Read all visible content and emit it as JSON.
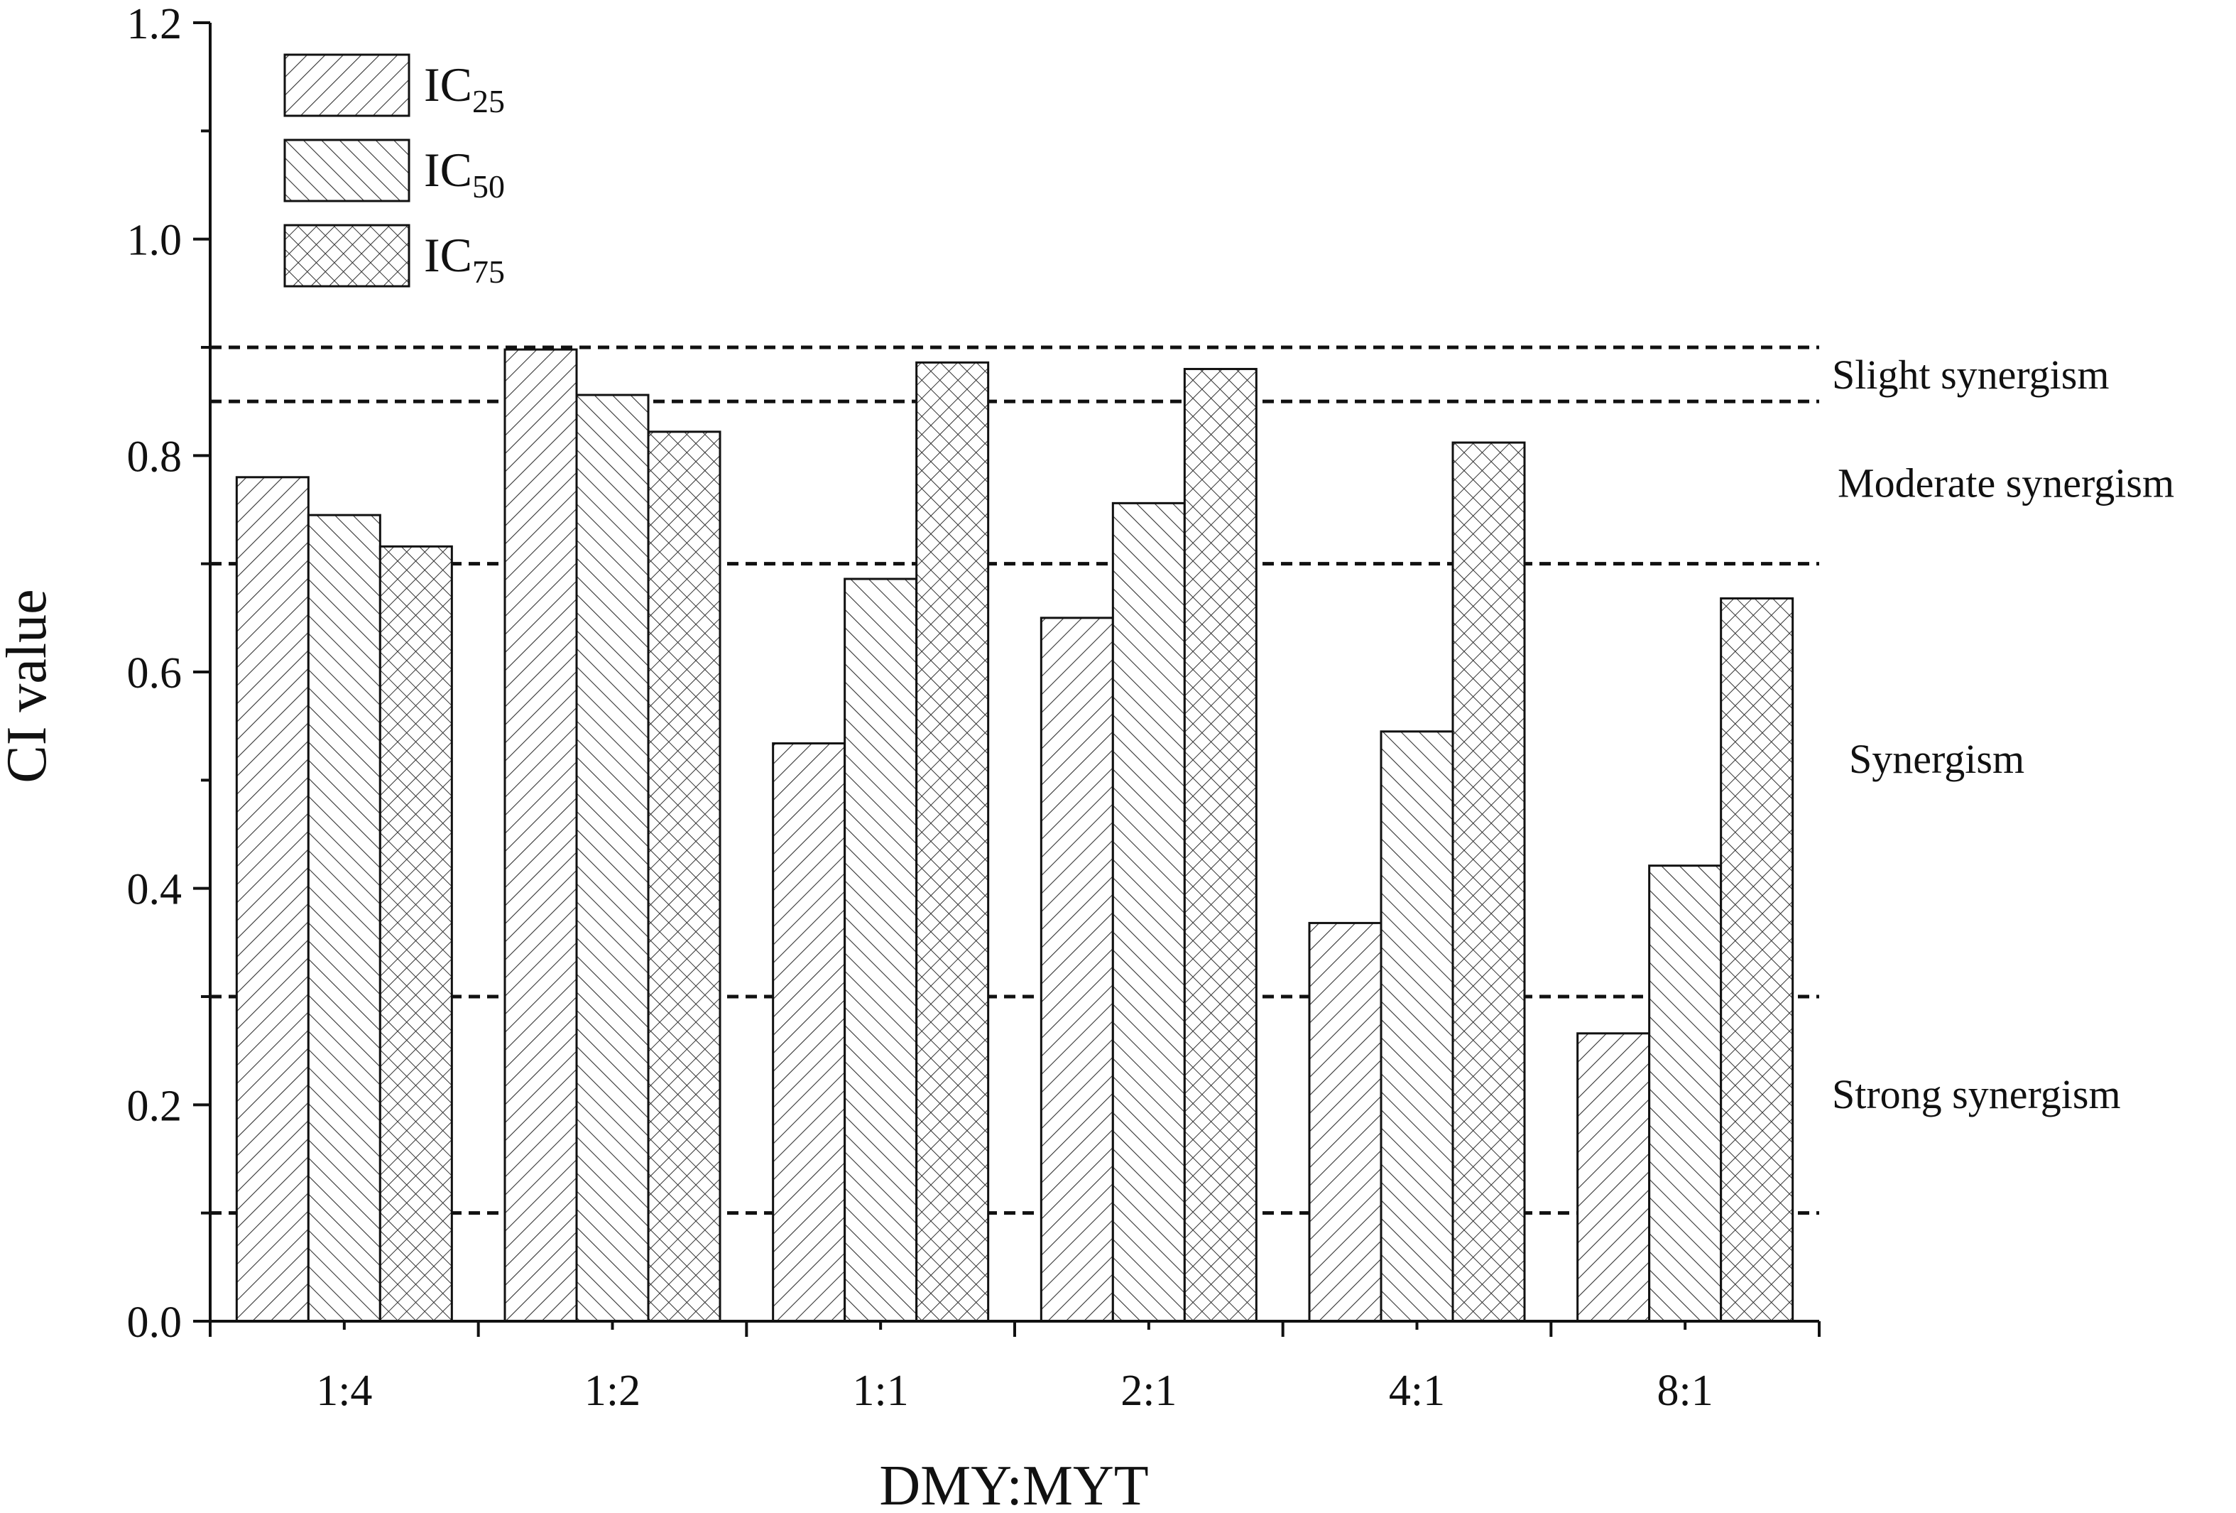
{
  "chart_data": {
    "type": "bar",
    "title": "",
    "xlabel": "DMY:MYT",
    "ylabel": "CI value",
    "categories": [
      "1:4",
      "1:2",
      "1:1",
      "2:1",
      "4:1",
      "8:1"
    ],
    "series": [
      {
        "name": "IC25",
        "label_main": "IC",
        "label_sub": "25",
        "pattern": "diag-forward",
        "values": [
          0.78,
          0.898,
          0.534,
          0.65,
          0.368,
          0.266
        ]
      },
      {
        "name": "IC50",
        "label_main": "IC",
        "label_sub": "50",
        "pattern": "diag-back",
        "values": [
          0.745,
          0.856,
          0.686,
          0.756,
          0.545,
          0.421
        ]
      },
      {
        "name": "IC75",
        "label_main": "IC",
        "label_sub": "75",
        "pattern": "crosshatch",
        "values": [
          0.716,
          0.822,
          0.886,
          0.88,
          0.812,
          0.668
        ]
      }
    ],
    "ylim": [
      0,
      1.2
    ],
    "yticks": [
      "0.0",
      "0.2",
      "0.4",
      "0.6",
      "0.8",
      "1.0",
      "1.2"
    ],
    "reference_lines": [
      0.1,
      0.3,
      0.7,
      0.85,
      0.9
    ],
    "annotations": [
      {
        "text": "Slight synergism",
        "y": 0.875
      },
      {
        "text": "Moderate synergism",
        "y": 0.775
      },
      {
        "text": "Synergism",
        "y": 0.52
      },
      {
        "text": "Strong synergism",
        "y": 0.21
      }
    ],
    "legend_position": "top-left",
    "grid": false
  }
}
